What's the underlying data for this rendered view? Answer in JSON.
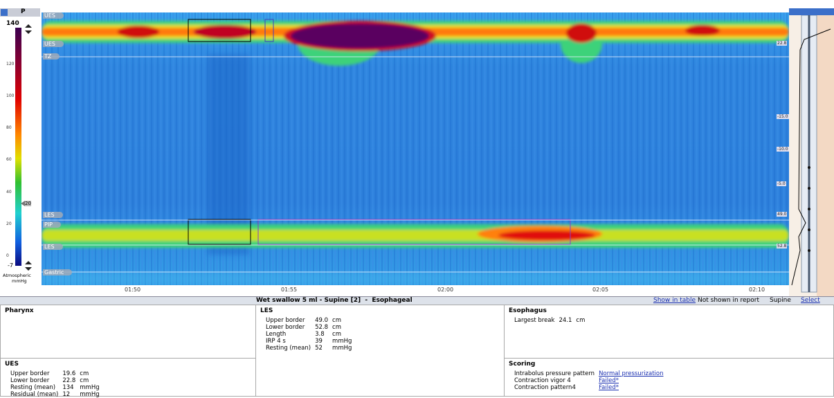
{
  "toolbar": {
    "label": "P"
  },
  "color_scale": {
    "max": "140",
    "ticks": [
      "120",
      "100",
      "80",
      "60",
      "40",
      "20",
      "0"
    ],
    "min": "-7",
    "marker": "20",
    "reference": "Atmospheric",
    "unit": "mmHg"
  },
  "plot": {
    "region_labels": [
      "UES",
      "UES",
      "TZ",
      "LES",
      "PIP",
      "LES",
      "Gastric"
    ],
    "depth_labels": [
      "22.8",
      "-15.0",
      "-10.0",
      "-5.0",
      "49.0",
      "52.8"
    ],
    "time_labels": [
      "01:50",
      "01:55",
      "02:00",
      "02:05",
      "02:10"
    ]
  },
  "title_bar": {
    "title": "Wet swallow 5 ml - Supine [2]  -  Esophageal",
    "actions": [
      "Show in table",
      "Not shown in report",
      "Supine",
      "Select next"
    ]
  },
  "pharynx": {
    "title": "Pharynx"
  },
  "ues": {
    "title": "UES",
    "rows": [
      [
        "Upper border",
        "19.6",
        "cm"
      ],
      [
        "Lower border",
        "22.8",
        "cm"
      ],
      [
        "Resting (mean)",
        "134",
        "mmHg"
      ],
      [
        "Residual (mean)",
        "12",
        "mmHg"
      ]
    ]
  },
  "les": {
    "title": "LES",
    "rows": [
      [
        "Upper border",
        "49.0",
        "cm"
      ],
      [
        "Lower border",
        "52.8",
        "cm"
      ],
      [
        "Length",
        "3.8",
        "cm"
      ],
      [
        "IRP 4 s",
        "39",
        "mmHg"
      ],
      [
        "Resting (mean)",
        "52",
        "mmHg"
      ]
    ]
  },
  "esophagus": {
    "title": "Esophagus",
    "rows": [
      [
        "Largest break",
        "24.1",
        "cm"
      ]
    ]
  },
  "scoring": {
    "title": "Scoring",
    "rows": [
      [
        "Intrabolus pressure pattern",
        "Normal pressurization"
      ],
      [
        "Contraction vigor 4",
        "Failed*"
      ],
      [
        "Contraction pattern4",
        "Failed*"
      ]
    ]
  }
}
